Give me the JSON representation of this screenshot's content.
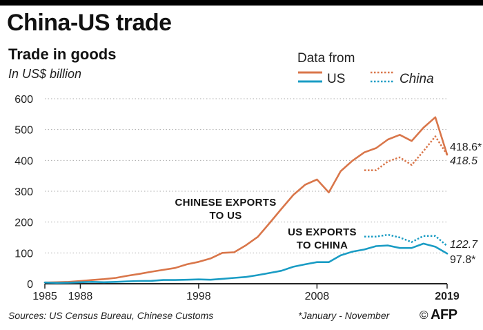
{
  "header": {
    "title": "China-US trade",
    "subtitle": "Trade in goods",
    "units": "In US$ billion"
  },
  "legend": {
    "title": "Data from",
    "items": [
      {
        "label": "US",
        "style": "solid",
        "italic": false
      },
      {
        "label": "China",
        "style": "dotted",
        "italic": true
      }
    ]
  },
  "colors": {
    "chinese_exports": "#d9764a",
    "us_exports": "#1a9cc4",
    "axis": "#222222",
    "grid": "#aaaaaa"
  },
  "footer": {
    "sources": "Sources: US Census Bureau, Chinese Customs",
    "note": "*January - November",
    "logo": "AFP",
    "logo_prefix": "©"
  },
  "chart_data": {
    "type": "line",
    "title": "Trade in goods",
    "xlabel": "",
    "ylabel": "In US$ billion",
    "xlim": [
      1985,
      2019
    ],
    "ylim": [
      0,
      600
    ],
    "x_ticks": [
      {
        "value": 1985,
        "label": "1985",
        "bold": false
      },
      {
        "value": 1988,
        "label": "1988",
        "bold": false
      },
      {
        "value": 1998,
        "label": "1998",
        "bold": false
      },
      {
        "value": 2008,
        "label": "2008",
        "bold": false
      },
      {
        "value": 2019,
        "label": "2019",
        "bold": true
      }
    ],
    "y_ticks": [
      {
        "value": 0,
        "label": "0"
      },
      {
        "value": 100,
        "label": "100"
      },
      {
        "value": 200,
        "label": "200"
      },
      {
        "value": 300,
        "label": "300"
      },
      {
        "value": 400,
        "label": "400"
      },
      {
        "value": 500,
        "label": "500"
      },
      {
        "value": 600,
        "label": "600"
      }
    ],
    "grid": "horizontal dotted",
    "legend_position": "top-right",
    "series": [
      {
        "name": "Chinese exports to US",
        "source": "US",
        "color": "#d9764a",
        "style": "solid",
        "x": [
          1985,
          1986,
          1987,
          1988,
          1989,
          1990,
          1991,
          1992,
          1993,
          1994,
          1995,
          1996,
          1997,
          1998,
          1999,
          2000,
          2001,
          2002,
          2003,
          2004,
          2005,
          2006,
          2007,
          2008,
          2009,
          2010,
          2011,
          2012,
          2013,
          2014,
          2015,
          2016,
          2017,
          2018,
          2019
        ],
        "y": [
          4,
          5,
          6,
          9,
          12,
          15,
          19,
          26,
          32,
          39,
          45,
          51,
          63,
          71,
          82,
          100,
          102,
          125,
          152,
          197,
          243,
          288,
          321,
          338,
          296,
          365,
          399,
          426,
          440,
          468,
          483,
          463,
          506,
          540,
          418.6
        ],
        "end_label": "418.6*"
      },
      {
        "name": "US exports to China",
        "source": "US",
        "color": "#1a9cc4",
        "style": "solid",
        "x": [
          1985,
          1986,
          1987,
          1988,
          1989,
          1990,
          1991,
          1992,
          1993,
          1994,
          1995,
          1996,
          1997,
          1998,
          1999,
          2000,
          2001,
          2002,
          2003,
          2004,
          2005,
          2006,
          2007,
          2008,
          2009,
          2010,
          2011,
          2012,
          2013,
          2014,
          2015,
          2016,
          2017,
          2018,
          2019
        ],
        "y": [
          4,
          3,
          3.5,
          5,
          6,
          5,
          6,
          7.5,
          9,
          9.5,
          12,
          12,
          13,
          14,
          13,
          16,
          19,
          22,
          28,
          35,
          42,
          55,
          63,
          70,
          70,
          92,
          104,
          111,
          122,
          124,
          116,
          116,
          130,
          120,
          97.8
        ],
        "end_label": "97.8*"
      },
      {
        "name": "Chinese exports to US",
        "source": "China",
        "color": "#d9764a",
        "style": "dotted",
        "x": [
          2012,
          2013,
          2014,
          2015,
          2016,
          2017,
          2018,
          2019
        ],
        "y": [
          368,
          368,
          397,
          410,
          385,
          430,
          478,
          418.5
        ],
        "end_label": "418.5"
      },
      {
        "name": "US exports to China",
        "source": "China",
        "color": "#1a9cc4",
        "style": "dotted",
        "x": [
          2012,
          2013,
          2014,
          2015,
          2016,
          2017,
          2018,
          2019
        ],
        "y": [
          153,
          153,
          159,
          150,
          135,
          155,
          155,
          122.7
        ],
        "end_label": "122.7"
      }
    ],
    "annotations": [
      {
        "text": "CHINESE EXPORTS",
        "line": 1,
        "series": "Chinese exports to US"
      },
      {
        "text": "TO US",
        "line": 2,
        "series": "Chinese exports to US"
      },
      {
        "text": "US EXPORTS",
        "line": 1,
        "series": "US exports to China"
      },
      {
        "text": "TO CHINA",
        "line": 2,
        "series": "US exports to China"
      }
    ]
  }
}
